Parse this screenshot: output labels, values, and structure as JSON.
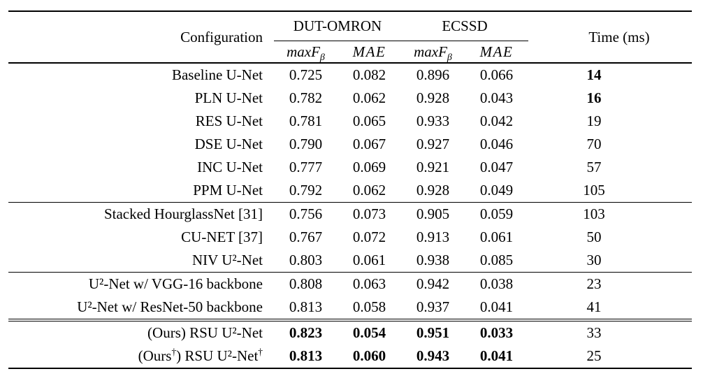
{
  "page": {
    "background_color": "#ffffff",
    "text_color": "#000000"
  },
  "table": {
    "header": {
      "config": "Configuration",
      "group1": "DUT-OMRON",
      "group2": "ECSSD",
      "maxf_prefix": "maxF",
      "maxf_sub": "β",
      "mae": "MAE",
      "time": "Time (ms)"
    },
    "sections": [
      {
        "rows": [
          {
            "config": "Baseline U-Net",
            "values": [
              "0.725",
              "0.082",
              "0.896",
              "0.066"
            ],
            "time": "14",
            "bold_values": false,
            "bold_time": true
          },
          {
            "config": "PLN U-Net",
            "values": [
              "0.782",
              "0.062",
              "0.928",
              "0.043"
            ],
            "time": "16",
            "bold_values": false,
            "bold_time": true
          },
          {
            "config": "RES U-Net",
            "values": [
              "0.781",
              "0.065",
              "0.933",
              "0.042"
            ],
            "time": "19",
            "bold_values": false,
            "bold_time": false
          },
          {
            "config": "DSE U-Net",
            "values": [
              "0.790",
              "0.067",
              "0.927",
              "0.046"
            ],
            "time": "70",
            "bold_values": false,
            "bold_time": false
          },
          {
            "config": "INC U-Net",
            "values": [
              "0.777",
              "0.069",
              "0.921",
              "0.047"
            ],
            "time": "57",
            "bold_values": false,
            "bold_time": false
          },
          {
            "config": "PPM U-Net",
            "values": [
              "0.792",
              "0.062",
              "0.928",
              "0.049"
            ],
            "time": "105",
            "bold_values": false,
            "bold_time": false
          }
        ]
      },
      {
        "rows": [
          {
            "config": "Stacked HourglassNet [31]",
            "values": [
              "0.756",
              "0.073",
              "0.905",
              "0.059"
            ],
            "time": "103",
            "bold_values": false,
            "bold_time": false
          },
          {
            "config": "CU-NET [37]",
            "values": [
              "0.767",
              "0.072",
              "0.913",
              "0.061"
            ],
            "time": "50",
            "bold_values": false,
            "bold_time": false
          },
          {
            "config": "NIV U²-Net",
            "values": [
              "0.803",
              "0.061",
              "0.938",
              "0.085"
            ],
            "time": "30",
            "bold_values": false,
            "bold_time": false
          }
        ]
      },
      {
        "rows": [
          {
            "config": "U²-Net w/ VGG-16 backbone",
            "values": [
              "0.808",
              "0.063",
              "0.942",
              "0.038"
            ],
            "time": "23",
            "bold_values": false,
            "bold_time": false
          },
          {
            "config": "U²-Net w/ ResNet-50 backbone",
            "values": [
              "0.813",
              "0.058",
              "0.937",
              "0.041"
            ],
            "time": "41",
            "bold_values": false,
            "bold_time": false
          }
        ]
      },
      {
        "rows": [
          {
            "config": "(Ours) RSU U²-Net",
            "values": [
              "0.823",
              "0.054",
              "0.951",
              "0.033"
            ],
            "time": "33",
            "bold_values": true,
            "bold_time": false
          },
          {
            "config": "(Ours†) RSU U²-Net†",
            "values": [
              "0.813",
              "0.060",
              "0.943",
              "0.041"
            ],
            "time": "25",
            "bold_values": true,
            "bold_time": false
          }
        ]
      }
    ]
  }
}
